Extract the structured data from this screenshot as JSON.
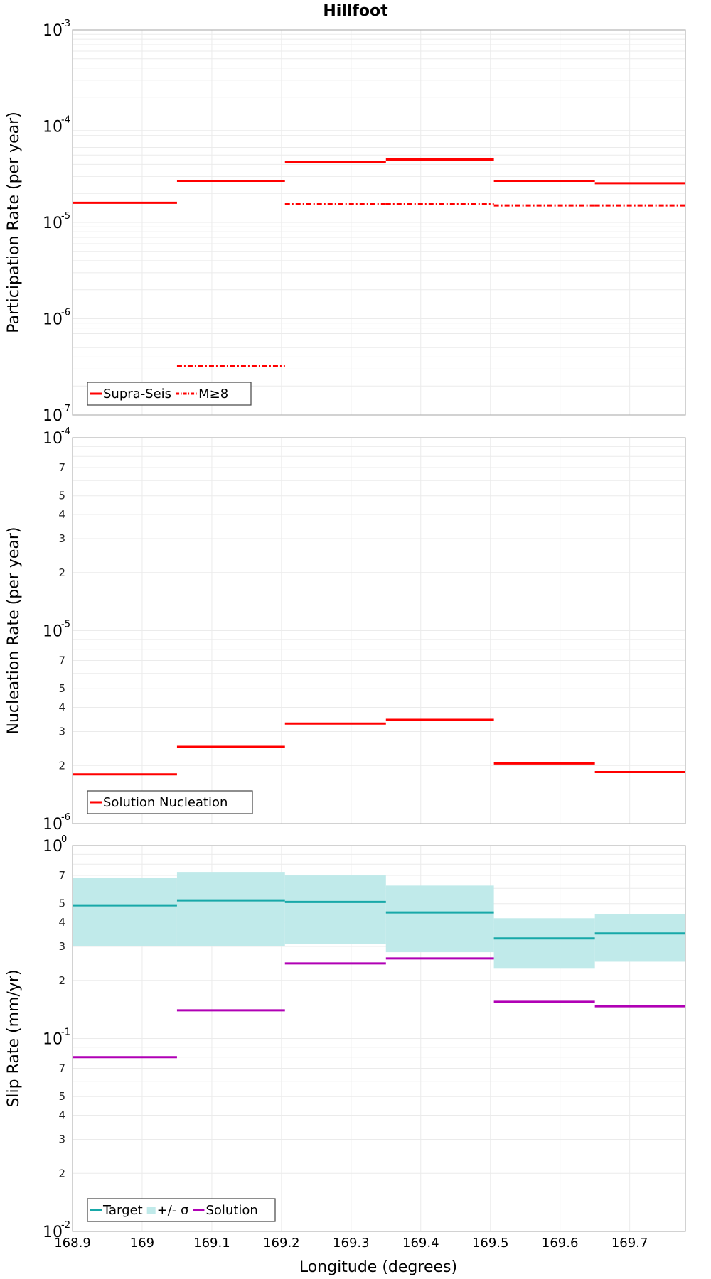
{
  "title": "Hillfoot",
  "xlabel": "Longitude (degrees)",
  "xticks": [
    "168.9",
    "169",
    "169.1",
    "169.2",
    "169.3",
    "169.4",
    "169.5",
    "169.6",
    "169.7"
  ],
  "chart_data": [
    {
      "type": "line",
      "ylabel": "Participation Rate (per year)",
      "xlim": [
        168.9,
        169.78
      ],
      "ylim": [
        1e-07,
        0.001
      ],
      "yscale": "log",
      "legend": "bottom-left",
      "grid": true,
      "series": [
        {
          "name": "Supra-Seis",
          "color": "#ff0000",
          "style": "solid",
          "segments": [
            [
              168.9,
              169.05,
              1.6e-05
            ],
            [
              169.05,
              169.205,
              2.7e-05
            ],
            [
              169.205,
              169.35,
              4.2e-05
            ],
            [
              169.35,
              169.505,
              4.5e-05
            ],
            [
              169.505,
              169.65,
              2.7e-05
            ],
            [
              169.65,
              169.78,
              2.55e-05
            ]
          ]
        },
        {
          "name": "M≥8",
          "color": "#ff0000",
          "style": "dashdot",
          "segments": [
            [
              169.05,
              169.205,
              3.2e-07
            ],
            [
              169.205,
              169.35,
              1.55e-05
            ],
            [
              169.35,
              169.505,
              1.55e-05
            ],
            [
              169.505,
              169.65,
              1.5e-05
            ],
            [
              169.65,
              169.78,
              1.5e-05
            ]
          ]
        }
      ]
    },
    {
      "type": "line",
      "ylabel": "Nucleation Rate (per year)",
      "xlim": [
        168.9,
        169.78
      ],
      "ylim": [
        1e-06,
        0.0001
      ],
      "yscale": "log",
      "legend": "bottom-left",
      "grid": true,
      "series": [
        {
          "name": "Solution Nucleation",
          "color": "#ff0000",
          "style": "solid",
          "segments": [
            [
              168.9,
              169.05,
              1.8e-06
            ],
            [
              169.05,
              169.205,
              2.5e-06
            ],
            [
              169.205,
              169.35,
              3.3e-06
            ],
            [
              169.35,
              169.505,
              3.45e-06
            ],
            [
              169.505,
              169.65,
              2.05e-06
            ],
            [
              169.65,
              169.78,
              1.85e-06
            ]
          ]
        }
      ]
    },
    {
      "type": "area",
      "ylabel": "Slip Rate (mm/yr)",
      "xlim": [
        168.9,
        169.78
      ],
      "ylim": [
        0.01,
        1
      ],
      "yscale": "log",
      "legend": "bottom-left",
      "grid": true,
      "band": {
        "name": "+/- σ",
        "color": "#c0eaea",
        "segments": [
          [
            168.9,
            169.05,
            0.3,
            0.68
          ],
          [
            169.05,
            169.205,
            0.3,
            0.73
          ],
          [
            169.205,
            169.35,
            0.31,
            0.7
          ],
          [
            169.35,
            169.505,
            0.28,
            0.62
          ],
          [
            169.505,
            169.65,
            0.23,
            0.42
          ],
          [
            169.65,
            169.78,
            0.25,
            0.44
          ]
        ]
      },
      "series": [
        {
          "name": "Target",
          "color": "#17a8a8",
          "style": "solid",
          "segments": [
            [
              168.9,
              169.05,
              0.49
            ],
            [
              169.05,
              169.205,
              0.52
            ],
            [
              169.205,
              169.35,
              0.51
            ],
            [
              169.35,
              169.505,
              0.45
            ],
            [
              169.505,
              169.65,
              0.33
            ],
            [
              169.65,
              169.78,
              0.35
            ]
          ]
        },
        {
          "name": "Solution",
          "color": "#b000b5",
          "style": "solid",
          "segments": [
            [
              168.9,
              169.05,
              0.08
            ],
            [
              169.05,
              169.205,
              0.14
            ],
            [
              169.205,
              169.35,
              0.245
            ],
            [
              169.35,
              169.505,
              0.26
            ],
            [
              169.505,
              169.65,
              0.155
            ],
            [
              169.65,
              169.78,
              0.147
            ]
          ]
        }
      ]
    }
  ]
}
